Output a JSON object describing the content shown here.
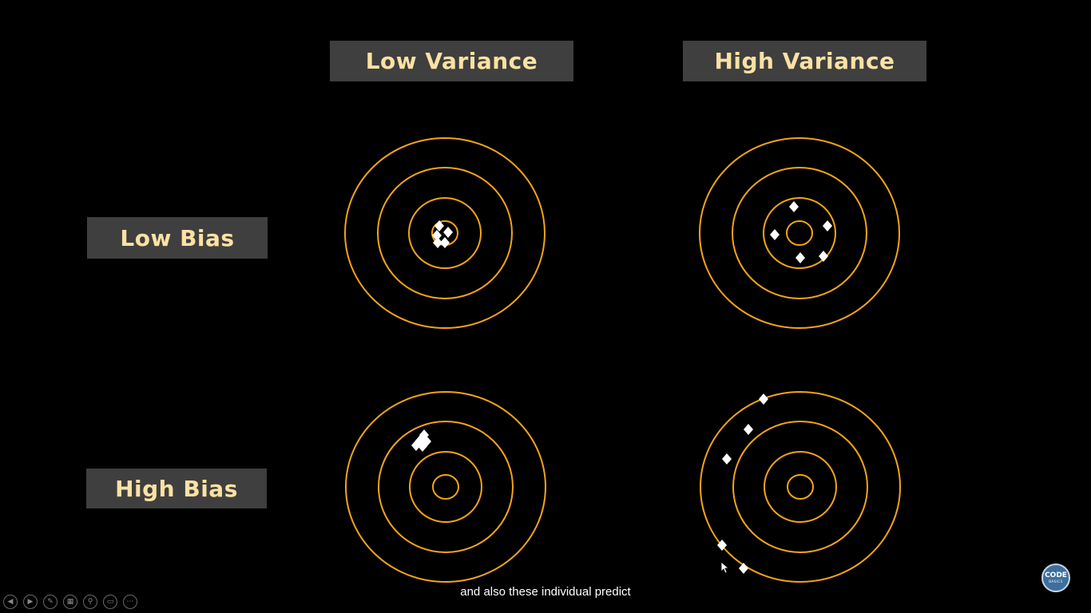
{
  "headers": {
    "low_variance": "Low Variance",
    "high_variance": "High Variance",
    "low_bias": "Low Bias",
    "high_bias": "High Bias"
  },
  "colors": {
    "background": "#000000",
    "label_box": "#3f3f3f",
    "label_text": "#fbe2a4",
    "ring": "#f3a417",
    "marker": "#ffffff"
  },
  "caption": "and also these individual predict",
  "logo": {
    "line1": "CODE",
    "line2": "BASICS"
  },
  "toolbar": {
    "items": [
      {
        "name": "previous-slide-button",
        "icon": "chevron-left-icon",
        "glyph": "◀"
      },
      {
        "name": "next-slide-button",
        "icon": "chevron-right-icon",
        "glyph": "▶"
      },
      {
        "name": "pen-button",
        "icon": "pen-icon",
        "glyph": "✎"
      },
      {
        "name": "see-all-slides-button",
        "icon": "grid-icon",
        "glyph": "▦"
      },
      {
        "name": "zoom-button",
        "icon": "magnifier-icon",
        "glyph": "⚲"
      },
      {
        "name": "subtitles-button",
        "icon": "subtitles-icon",
        "glyph": "▭"
      },
      {
        "name": "more-options-button",
        "icon": "ellipsis-icon",
        "glyph": "⋯"
      }
    ]
  }
}
